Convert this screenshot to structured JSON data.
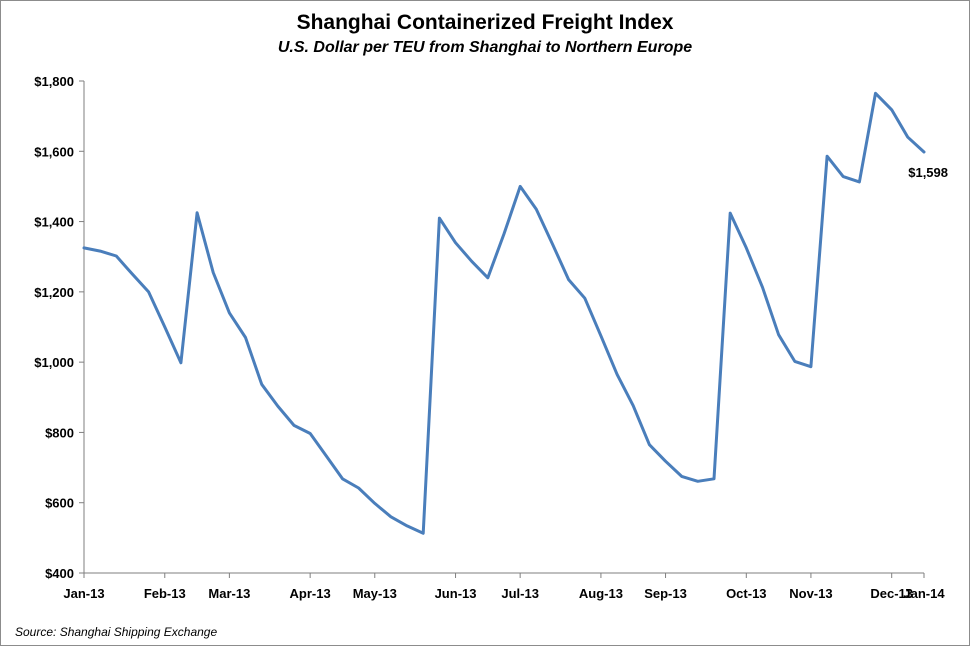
{
  "chart_data": {
    "type": "line",
    "title": "Shanghai Containerized Freight Index",
    "subtitle": "U.S. Dollar per TEU from Shanghai to Northern Europe",
    "source": "Source:  Shanghai Shipping Exchange",
    "ylim": [
      400,
      1800
    ],
    "yticks": [
      400,
      600,
      800,
      1000,
      1200,
      1400,
      1600,
      1800
    ],
    "ytick_labels": [
      "$400",
      "$600",
      "$800",
      "$1,000",
      "$1,200",
      "$1,400",
      "$1,600",
      "$1,800"
    ],
    "xlim": [
      "2013-01-04",
      "2014-01-03"
    ],
    "xtick_labels": [
      "Jan-13",
      "Feb-13",
      "Mar-13",
      "Apr-13",
      "May-13",
      "Jun-13",
      "Jul-13",
      "Aug-13",
      "Sep-13",
      "Oct-13",
      "Nov-13",
      "Dec-13",
      "Jan-14"
    ],
    "xtick_dates": [
      "2013-01-04",
      "2013-02-08",
      "2013-03-08",
      "2013-04-12",
      "2013-05-10",
      "2013-06-14",
      "2013-07-12",
      "2013-08-16",
      "2013-09-13",
      "2013-10-18",
      "2013-11-15",
      "2013-12-20",
      "2014-01-03"
    ],
    "line_color": "#4a7ebb",
    "end_label": "$1,598",
    "series": [
      {
        "name": "",
        "x": [
          "2013-01-04",
          "2013-01-11",
          "2013-01-18",
          "2013-01-25",
          "2013-02-01",
          "2013-02-08",
          "2013-02-15",
          "2013-02-22",
          "2013-03-01",
          "2013-03-08",
          "2013-03-15",
          "2013-03-22",
          "2013-03-29",
          "2013-04-05",
          "2013-04-12",
          "2013-04-19",
          "2013-04-26",
          "2013-05-03",
          "2013-05-10",
          "2013-05-17",
          "2013-05-24",
          "2013-05-31",
          "2013-06-07",
          "2013-06-14",
          "2013-06-21",
          "2013-06-28",
          "2013-07-05",
          "2013-07-12",
          "2013-07-19",
          "2013-07-26",
          "2013-08-02",
          "2013-08-09",
          "2013-08-16",
          "2013-08-23",
          "2013-08-30",
          "2013-09-06",
          "2013-09-13",
          "2013-09-20",
          "2013-09-27",
          "2013-10-04",
          "2013-10-11",
          "2013-10-18",
          "2013-10-25",
          "2013-11-01",
          "2013-11-08",
          "2013-11-15",
          "2013-11-22",
          "2013-11-29",
          "2013-12-06",
          "2013-12-13",
          "2013-12-20",
          "2013-12-27",
          "2014-01-03"
        ],
        "values": [
          1325,
          1316,
          1302,
          1250,
          1200,
          1100,
          998,
          1425,
          1255,
          1140,
          1070,
          937,
          875,
          820,
          797,
          733,
          668,
          642,
          598,
          560,
          534,
          513,
          1410,
          1340,
          1287,
          1240,
          1365,
          1500,
          1435,
          1336,
          1235,
          1182,
          1075,
          965,
          876,
          765,
          718,
          675,
          661,
          668,
          1424,
          1325,
          1213,
          1078,
          1002,
          987,
          1586,
          1528,
          1513,
          1765,
          1718,
          1640,
          1598
        ]
      }
    ]
  }
}
